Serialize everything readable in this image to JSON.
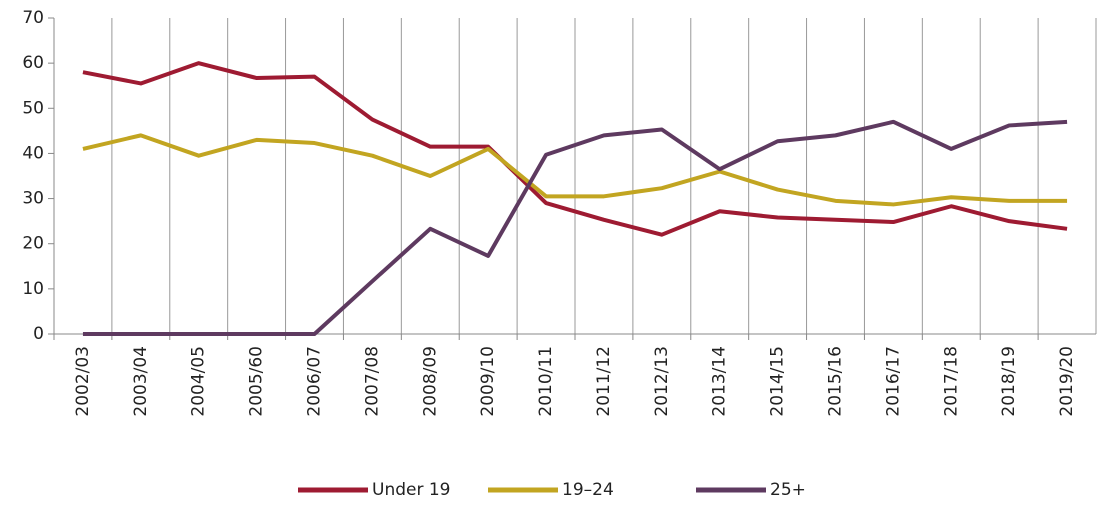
{
  "chart_data": {
    "type": "line",
    "categories": [
      "2002/03",
      "2003/04",
      "2004/05",
      "2005/60",
      "2006/07",
      "2007/08",
      "2008/09",
      "2009/10",
      "2010/11",
      "2011/12",
      "2012/13",
      "2013/14",
      "2014/15",
      "2015/16",
      "2016/17",
      "2017/18",
      "2018/19",
      "2019/20"
    ],
    "series": [
      {
        "name": "Under 19",
        "color": "#9e1b32",
        "values": [
          58,
          55.5,
          60,
          56.7,
          57,
          47.5,
          41.5,
          41.5,
          29,
          25.3,
          22,
          27.2,
          25.8,
          25.3,
          24.8,
          28.3,
          25,
          23.3
        ]
      },
      {
        "name": "19–24",
        "color": "#c2a521",
        "values": [
          41,
          44,
          39.5,
          43,
          42.3,
          39.5,
          35,
          41,
          30.5,
          30.5,
          32.3,
          36,
          32,
          29.5,
          28.7,
          30.3,
          29.5,
          29.5
        ]
      },
      {
        "name": "25+",
        "color": "#5e3a60",
        "values": [
          0,
          0,
          0,
          0,
          0,
          11.7,
          23.3,
          17.3,
          39.7,
          44,
          45.3,
          36.5,
          42.7,
          44,
          47,
          41,
          46.2,
          47
        ]
      }
    ],
    "ylim": [
      0,
      70
    ],
    "yticks": [
      0,
      10,
      20,
      30,
      40,
      50,
      60,
      70
    ],
    "grid": true,
    "legend": "bottom"
  }
}
